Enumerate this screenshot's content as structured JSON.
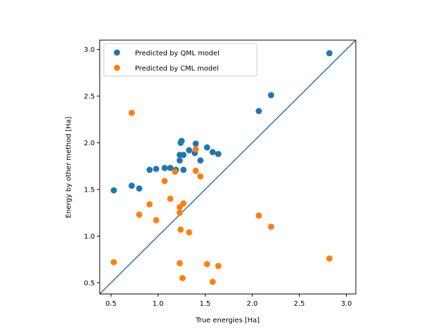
{
  "chart_data": {
    "type": "scatter",
    "title": "",
    "xlabel": "True energies [Ha]",
    "ylabel": "Energy by other method [Ha]",
    "xlim": [
      0.38,
      3.1
    ],
    "ylim": [
      0.38,
      3.1
    ],
    "xticks": [
      "0.5",
      "1.0",
      "1.5",
      "2.0",
      "2.5",
      "3.0"
    ],
    "yticks": [
      "0.5",
      "1.0",
      "1.5",
      "2.0",
      "2.5",
      "3.0"
    ],
    "grid": false,
    "legend_position": "top-left",
    "reference_line": {
      "x": [
        0.38,
        3.1
      ],
      "y": [
        0.38,
        3.1
      ],
      "color": "#1f77b4"
    },
    "series": [
      {
        "name": "Predicted by QML model",
        "color": "#1f77b4",
        "x": [
          0.53,
          0.72,
          0.8,
          0.91,
          0.98,
          1.07,
          1.13,
          1.19,
          1.23,
          1.23,
          1.24,
          1.25,
          1.27,
          1.27,
          1.33,
          1.39,
          1.4,
          1.45,
          1.52,
          1.58,
          1.64,
          2.07,
          2.2,
          2.82
        ],
        "y": [
          1.49,
          1.54,
          1.51,
          1.71,
          1.72,
          1.73,
          1.73,
          1.71,
          1.87,
          1.81,
          2.0,
          2.02,
          1.87,
          1.71,
          1.92,
          1.89,
          1.99,
          1.81,
          1.95,
          1.9,
          1.88,
          2.34,
          2.51,
          2.96
        ]
      },
      {
        "name": "Predicted by CML model",
        "color": "#ff7f0e",
        "x": [
          0.53,
          0.72,
          0.8,
          0.91,
          0.98,
          1.07,
          1.13,
          1.18,
          1.23,
          1.23,
          1.23,
          1.24,
          1.26,
          1.27,
          1.33,
          1.4,
          1.4,
          1.45,
          1.52,
          1.58,
          1.64,
          2.07,
          2.2,
          2.82
        ],
        "y": [
          0.72,
          2.32,
          1.23,
          1.34,
          1.17,
          1.59,
          1.4,
          1.69,
          1.25,
          1.31,
          0.71,
          1.07,
          0.55,
          1.35,
          1.04,
          1.7,
          1.93,
          1.64,
          0.7,
          0.51,
          0.68,
          1.22,
          1.1,
          0.76
        ]
      }
    ]
  }
}
